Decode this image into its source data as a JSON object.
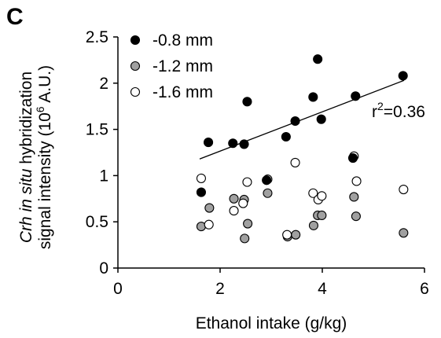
{
  "panel_label": "C",
  "chart_data": {
    "type": "scatter",
    "xlabel": "Ethanol intake (g/kg)",
    "ylabel_line1": {
      "italic1": "Crh",
      "mid": " ",
      "italic2": "in situ",
      "rest": " hybridization"
    },
    "ylabel_line2": {
      "pre": "signal intensity (10",
      "sup": "6",
      "post": " A.U.)"
    },
    "xlim": [
      0,
      6
    ],
    "ylim": [
      0,
      2.5
    ],
    "xticks": [
      "0",
      "2",
      "4",
      "6"
    ],
    "yticks": [
      "0",
      "0.5",
      "1",
      "1.5",
      "2",
      "2.5"
    ],
    "grid": false,
    "legend_position": "top-left",
    "series": [
      {
        "name": "-0.8 mm",
        "fill": "#000000",
        "points": [
          [
            1.63,
            0.82
          ],
          [
            1.77,
            1.36
          ],
          [
            2.25,
            1.35
          ],
          [
            2.47,
            1.34
          ],
          [
            2.53,
            1.8
          ],
          [
            3.29,
            1.42
          ],
          [
            3.47,
            1.59
          ],
          [
            3.82,
            1.85
          ],
          [
            3.91,
            2.26
          ],
          [
            3.98,
            1.61
          ],
          [
            4.65,
            1.86
          ],
          [
            5.58,
            2.08
          ],
          [
            2.91,
            0.95
          ],
          [
            4.6,
            1.19
          ]
        ]
      },
      {
        "name": "-1.2 mm",
        "fill": "#a0a0a0",
        "points": [
          [
            1.63,
            0.45
          ],
          [
            1.79,
            0.65
          ],
          [
            2.27,
            0.75
          ],
          [
            2.48,
            0.32
          ],
          [
            2.54,
            0.48
          ],
          [
            2.93,
            0.81
          ],
          [
            3.32,
            0.34
          ],
          [
            3.48,
            0.36
          ],
          [
            3.83,
            0.46
          ],
          [
            3.91,
            0.57
          ],
          [
            3.99,
            0.57
          ],
          [
            4.62,
            0.77
          ],
          [
            4.66,
            0.56
          ],
          [
            5.59,
            0.38
          ],
          [
            2.47,
            0.74
          ]
        ]
      },
      {
        "name": "-1.6 mm",
        "fill": "#ffffff",
        "points": [
          [
            1.63,
            0.97
          ],
          [
            1.78,
            0.47
          ],
          [
            2.27,
            0.62
          ],
          [
            2.45,
            0.7
          ],
          [
            2.53,
            0.93
          ],
          [
            2.93,
            0.96
          ],
          [
            3.31,
            0.36
          ],
          [
            3.47,
            1.14
          ],
          [
            3.82,
            0.81
          ],
          [
            3.92,
            0.74
          ],
          [
            3.99,
            0.78
          ],
          [
            4.62,
            1.21
          ],
          [
            4.67,
            0.94
          ],
          [
            5.59,
            0.85
          ]
        ]
      }
    ],
    "trendline": {
      "x": [
        1.6,
        5.6
      ],
      "y": [
        1.18,
        2.03
      ]
    },
    "annotation": {
      "pre": "r",
      "sup": "2",
      "post": "=0.36"
    }
  }
}
